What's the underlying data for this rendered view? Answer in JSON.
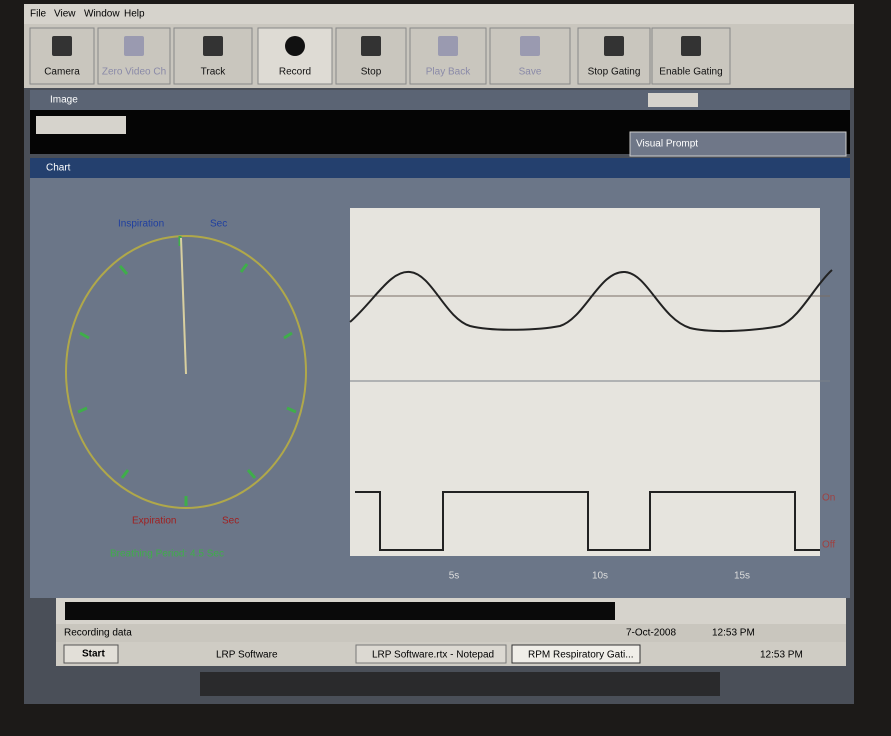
{
  "menu": [
    "File",
    "View",
    "Window",
    "Help"
  ],
  "toolbar": [
    "Camera",
    "Zero Video Ch",
    "Track",
    "Record",
    "Stop",
    "Play Back",
    "Save",
    "Stop Gating",
    "Enable Gating"
  ],
  "image_window": {
    "title": "Image"
  },
  "visual_prompt": {
    "title": "Visual Prompt"
  },
  "chart_window": {
    "title": "Chart",
    "dial": {
      "top_label": "Inspiration",
      "top_unit": "Sec",
      "bottom_label": "Expiration",
      "bottom_unit": "Sec",
      "breathing_period": "Breathing Period: 4.5 Sec"
    },
    "x_labels": [
      "5s",
      "10s",
      "15s"
    ],
    "gate_labels": [
      "On",
      "Off"
    ]
  },
  "status": {
    "text": "Recording data",
    "date": "7-Oct-2008",
    "time": "12:53 PM"
  },
  "taskbar": {
    "start": "Start",
    "items": [
      "LRP Software",
      "LRP Software.rtx - Notepad",
      "RPM Respiratory Gati..."
    ],
    "clock": "12:53 PM"
  }
}
